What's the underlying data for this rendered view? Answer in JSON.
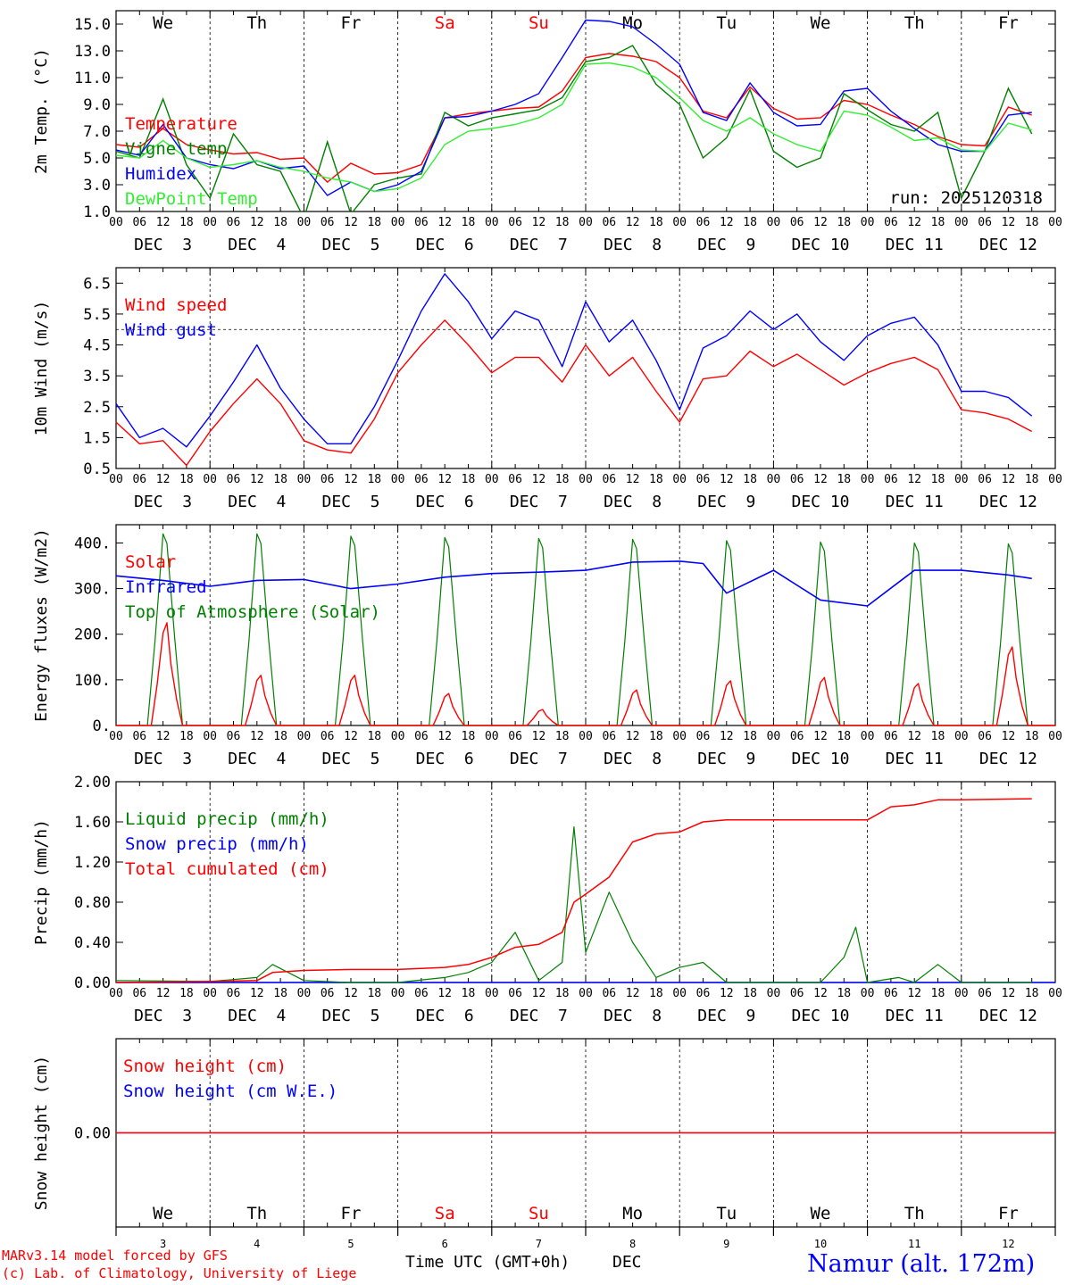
{
  "colors": {
    "red": "#ff0000",
    "green": "#008000",
    "blue": "#0000ff",
    "lightgreen": "#33ee33",
    "axis": "#000000"
  },
  "days_of_week": [
    "We",
    "Th",
    "Fr",
    "Sa",
    "Su",
    "Mo",
    "Tu",
    "We",
    "Th",
    "Fr"
  ],
  "weekend_days": [
    "Sa",
    "Su"
  ],
  "date_labels": [
    "DEC  3",
    "DEC  4",
    "DEC  5",
    "DEC  6",
    "DEC  7",
    "DEC  8",
    "DEC  9",
    "DEC 10",
    "DEC 11",
    "DEC 12"
  ],
  "hour_ticks": [
    "00",
    "06",
    "12",
    "18"
  ],
  "bottom_day_numbers": [
    "3",
    "4",
    "5",
    "6",
    "7",
    "8",
    "9",
    "10",
    "11",
    "12"
  ],
  "footer": {
    "model_line": "MARv3.14 model forced by GFS",
    "lab_line": "(c) Lab. of Climatology, University of Liege",
    "axis_title": "Time UTC (GMT+0h)",
    "month": "DEC",
    "station": "Namur (alt. 172m)"
  },
  "chart_data": [
    {
      "type": "line",
      "title": "",
      "ylabel": "2m Temp. (°C)",
      "xlabel": "",
      "ylim": [
        1.0,
        16.0
      ],
      "yticks": [
        "1.0",
        "3.0",
        "5.0",
        "7.0",
        "9.0",
        "11.0",
        "13.0",
        "15.0"
      ],
      "annotation": "run: 2025120318",
      "x_unit": "hours since DEC 3 00UTC",
      "series": [
        {
          "name": "Temperature",
          "color": "red",
          "x": [
            0,
            6,
            12,
            18,
            24,
            30,
            36,
            42,
            48,
            54,
            60,
            66,
            72,
            78,
            84,
            90,
            96,
            102,
            108,
            114,
            120,
            126,
            132,
            138,
            144,
            150,
            156,
            162,
            168,
            174,
            180,
            186,
            192,
            198,
            204,
            210,
            216,
            222,
            228,
            234
          ],
          "values": [
            6.0,
            5.8,
            7.2,
            6.0,
            5.6,
            5.3,
            5.4,
            4.9,
            5.0,
            3.2,
            4.6,
            3.8,
            3.9,
            4.5,
            8.0,
            8.3,
            8.5,
            8.7,
            8.8,
            10.0,
            12.5,
            12.8,
            12.6,
            12.2,
            11.0,
            8.5,
            8.0,
            10.3,
            8.7,
            7.9,
            8.0,
            9.3,
            9.0,
            8.2,
            7.5,
            6.6,
            6.0,
            5.9,
            8.8,
            8.2
          ]
        },
        {
          "name": "Vigne temp",
          "color": "green",
          "x": [
            0,
            6,
            12,
            18,
            24,
            30,
            36,
            42,
            48,
            54,
            60,
            66,
            72,
            78,
            84,
            90,
            96,
            102,
            108,
            114,
            120,
            126,
            132,
            138,
            144,
            150,
            156,
            162,
            168,
            174,
            180,
            186,
            192,
            198,
            204,
            210,
            216,
            222,
            228,
            234
          ],
          "values": [
            5.5,
            5.0,
            9.4,
            4.5,
            2.0,
            6.8,
            4.5,
            4.0,
            0.5,
            6.2,
            0.8,
            3.0,
            3.5,
            3.8,
            8.4,
            7.4,
            8.0,
            8.3,
            8.6,
            9.5,
            12.2,
            12.5,
            13.4,
            10.5,
            9.0,
            5.0,
            6.5,
            10.1,
            5.5,
            4.3,
            5.0,
            9.8,
            8.6,
            7.5,
            7.0,
            8.4,
            2.0,
            5.5,
            10.2,
            6.8
          ]
        },
        {
          "name": "Humidex",
          "color": "blue",
          "x": [
            0,
            6,
            12,
            18,
            24,
            30,
            36,
            42,
            48,
            54,
            60,
            66,
            72,
            78,
            84,
            90,
            96,
            102,
            108,
            114,
            120,
            126,
            132,
            138,
            144,
            150,
            156,
            162,
            168,
            174,
            180,
            186,
            192,
            198,
            204,
            210,
            216,
            222,
            228,
            234
          ],
          "values": [
            5.6,
            5.2,
            7.5,
            5.0,
            4.5,
            4.2,
            4.8,
            4.2,
            4.4,
            2.2,
            3.2,
            2.5,
            3.0,
            4.0,
            8.0,
            8.1,
            8.5,
            9.0,
            9.8,
            12.5,
            15.3,
            15.2,
            14.8,
            13.5,
            12.0,
            8.4,
            7.8,
            10.6,
            8.4,
            7.4,
            7.5,
            10.0,
            10.2,
            8.5,
            7.2,
            6.0,
            5.5,
            5.5,
            8.2,
            8.4
          ]
        },
        {
          "name": "DewPoint Temp",
          "color": "lightgreen",
          "x": [
            0,
            6,
            12,
            18,
            24,
            30,
            36,
            42,
            48,
            54,
            60,
            66,
            72,
            78,
            84,
            90,
            96,
            102,
            108,
            114,
            120,
            126,
            132,
            138,
            144,
            150,
            156,
            162,
            168,
            174,
            180,
            186,
            192,
            198,
            204,
            210,
            216,
            222,
            228,
            234
          ],
          "values": [
            5.2,
            5.0,
            6.3,
            5.0,
            4.3,
            4.5,
            4.8,
            4.3,
            4.0,
            3.5,
            3.2,
            2.5,
            2.7,
            3.5,
            6.0,
            7.0,
            7.2,
            7.5,
            8.0,
            9.0,
            12.0,
            12.1,
            11.8,
            11.0,
            9.5,
            7.8,
            7.0,
            8.0,
            6.8,
            6.0,
            5.5,
            8.5,
            8.2,
            7.3,
            6.3,
            6.5,
            5.6,
            5.5,
            7.6,
            7.1
          ]
        }
      ]
    },
    {
      "type": "line",
      "ylabel": "10m Wind (m/s)",
      "ylim": [
        0.5,
        7.0
      ],
      "yticks": [
        "0.5",
        "1.5",
        "2.5",
        "3.5",
        "4.5",
        "5.5",
        "6.5"
      ],
      "reference_line": 5.0,
      "series": [
        {
          "name": "Wind speed",
          "color": "red",
          "x": [
            0,
            6,
            12,
            18,
            24,
            30,
            36,
            42,
            48,
            54,
            60,
            66,
            72,
            78,
            84,
            90,
            96,
            102,
            108,
            114,
            120,
            126,
            132,
            138,
            144,
            150,
            156,
            162,
            168,
            174,
            180,
            186,
            192,
            198,
            204,
            210,
            216,
            222,
            228,
            234
          ],
          "values": [
            2.0,
            1.3,
            1.4,
            0.6,
            1.7,
            2.6,
            3.4,
            2.6,
            1.4,
            1.1,
            1.0,
            2.1,
            3.6,
            4.5,
            5.3,
            4.5,
            3.6,
            4.1,
            4.1,
            3.3,
            4.5,
            3.5,
            4.1,
            3.0,
            2.0,
            3.4,
            3.5,
            4.3,
            3.8,
            4.2,
            3.7,
            3.2,
            3.6,
            3.9,
            4.1,
            3.7,
            2.4,
            2.3,
            2.1,
            1.7
          ]
        },
        {
          "name": "Wind gust",
          "color": "blue",
          "x": [
            0,
            6,
            12,
            18,
            24,
            30,
            36,
            42,
            48,
            54,
            60,
            66,
            72,
            78,
            84,
            90,
            96,
            102,
            108,
            114,
            120,
            126,
            132,
            138,
            144,
            150,
            156,
            162,
            168,
            174,
            180,
            186,
            192,
            198,
            204,
            210,
            216,
            222,
            228,
            234
          ],
          "values": [
            2.6,
            1.5,
            1.8,
            1.2,
            2.2,
            3.3,
            4.5,
            3.1,
            2.1,
            1.3,
            1.3,
            2.5,
            4.0,
            5.6,
            6.8,
            5.9,
            4.7,
            5.6,
            5.3,
            3.8,
            5.9,
            4.6,
            5.3,
            4.0,
            2.4,
            4.4,
            4.8,
            5.6,
            5.0,
            5.5,
            4.6,
            4.0,
            4.8,
            5.2,
            5.4,
            4.5,
            3.0,
            3.0,
            2.8,
            2.2
          ]
        }
      ]
    },
    {
      "type": "line",
      "ylabel": "Energy fluxes (W/m2)",
      "ylim": [
        0,
        440
      ],
      "yticks": [
        "0.",
        "100.",
        "200.",
        "300.",
        "400."
      ],
      "series": [
        {
          "name": "Solar",
          "color": "red",
          "peaks": [
            225,
            110,
            110,
            70,
            35,
            78,
            98,
            105,
            92,
            172
          ]
        },
        {
          "name": "Infrared",
          "color": "blue",
          "x": [
            0,
            12,
            24,
            36,
            48,
            60,
            72,
            84,
            96,
            108,
            120,
            132,
            144,
            150,
            156,
            168,
            180,
            192,
            204,
            216,
            228,
            234
          ],
          "values": [
            328,
            318,
            305,
            318,
            320,
            300,
            310,
            325,
            333,
            336,
            340,
            358,
            360,
            355,
            290,
            340,
            275,
            262,
            340,
            340,
            330,
            322
          ]
        },
        {
          "name": "Top of Atmosphere (Solar)",
          "color": "green",
          "peaks": [
            420,
            420,
            415,
            412,
            410,
            408,
            405,
            402,
            400,
            398
          ]
        }
      ]
    },
    {
      "type": "line",
      "ylabel": "Precip (mm/h)",
      "ylim": [
        0.0,
        2.0
      ],
      "yticks": [
        "0.00",
        "0.40",
        "0.80",
        "1.20",
        "1.60",
        "2.00"
      ],
      "series": [
        {
          "name": "Liquid precip (mm/h)",
          "color": "green",
          "x": [
            0,
            24,
            36,
            40,
            48,
            60,
            72,
            84,
            90,
            96,
            102,
            108,
            114,
            117,
            120,
            126,
            132,
            138,
            144,
            150,
            156,
            162,
            168,
            180,
            186,
            189,
            192,
            200,
            204,
            210,
            216,
            234
          ],
          "values": [
            0.02,
            0.01,
            0.05,
            0.18,
            0.02,
            0.0,
            0.0,
            0.05,
            0.1,
            0.2,
            0.5,
            0.02,
            0.2,
            1.55,
            0.3,
            0.9,
            0.4,
            0.05,
            0.15,
            0.2,
            0.0,
            0.0,
            0.0,
            0.0,
            0.25,
            0.55,
            0.0,
            0.05,
            0.0,
            0.18,
            0.0,
            0.0
          ]
        },
        {
          "name": "Snow precip (mm/h)",
          "color": "blue",
          "values_constant": 0.0
        },
        {
          "name": "Total cumulated (cm)",
          "color": "red",
          "x": [
            0,
            24,
            36,
            40,
            48,
            60,
            72,
            84,
            90,
            96,
            102,
            108,
            114,
            117,
            120,
            126,
            132,
            138,
            144,
            150,
            156,
            168,
            180,
            192,
            198,
            204,
            210,
            216,
            234
          ],
          "values": [
            0.0,
            0.01,
            0.02,
            0.1,
            0.12,
            0.13,
            0.13,
            0.15,
            0.18,
            0.25,
            0.35,
            0.38,
            0.5,
            0.8,
            0.88,
            1.05,
            1.4,
            1.48,
            1.5,
            1.6,
            1.62,
            1.62,
            1.62,
            1.62,
            1.75,
            1.77,
            1.82,
            1.82,
            1.83
          ]
        }
      ]
    },
    {
      "type": "line",
      "ylabel": "Snow height (cm)",
      "ylim": [
        -1.0,
        1.0
      ],
      "yticks": [
        "0.00"
      ],
      "series": [
        {
          "name": "Snow height (cm)",
          "color": "red",
          "values_constant": 0.0
        },
        {
          "name": "Snow height (cm W.E.)",
          "color": "blue",
          "values_constant": 0.0
        }
      ]
    }
  ]
}
